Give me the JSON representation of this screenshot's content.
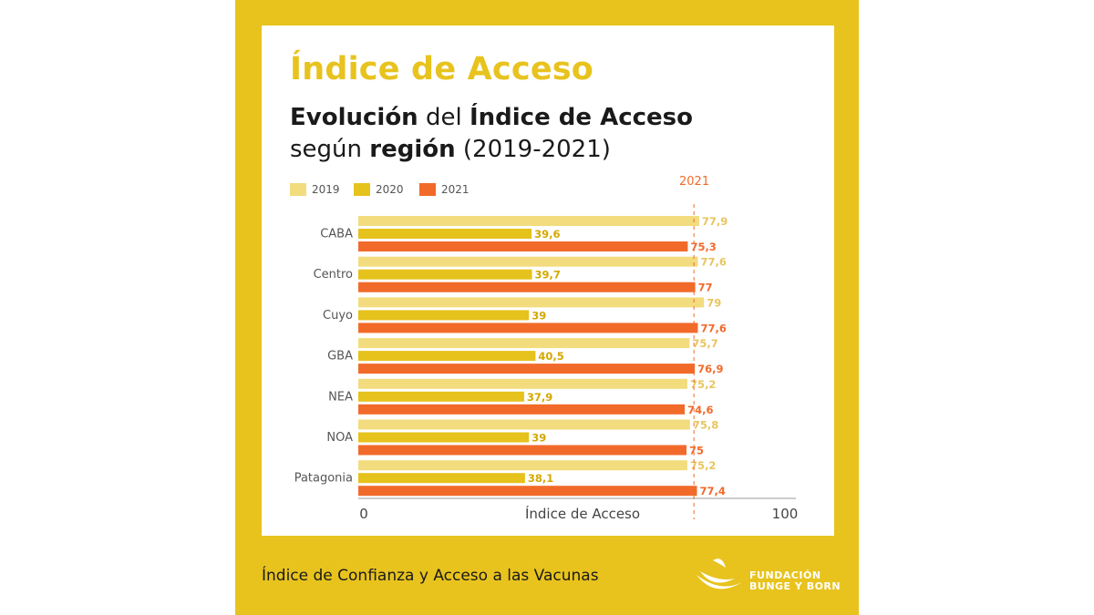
{
  "title": "Índice de Acceso",
  "subtitle": {
    "line1_bold_a": "Evolución",
    "line1_mid": " del ",
    "line1_bold_b": "Índice de Acceso",
    "line2_pre": "según ",
    "line2_bold": "región",
    "line2_post": " (2019-2021)"
  },
  "marker_label": "2021",
  "footer": "Índice de Confianza y Acceso a las Vacunas",
  "logo": {
    "line1": "FUNDACIÓN",
    "line2": "BUNGE Y BORN"
  },
  "colors": {
    "frame": "#E8C31E",
    "s2019": "#F2DC7E",
    "s2020": "#E6C21C",
    "s2021": "#F26A2A",
    "label2019": "#E8C560",
    "label2020": "#D4A800"
  },
  "chart_data": {
    "type": "bar",
    "orientation": "horizontal",
    "categories": [
      "CABA",
      "Centro",
      "Cuyo",
      "GBA",
      "NEA",
      "NOA",
      "Patagonia"
    ],
    "series": [
      {
        "name": "2019",
        "values": [
          77.9,
          77.6,
          79,
          75.7,
          75.2,
          75.8,
          75.2
        ],
        "labels": [
          "77,9",
          "77,6",
          "79",
          "75,7",
          "75,2",
          "75,8",
          "75,2"
        ]
      },
      {
        "name": "2020",
        "values": [
          39.6,
          39.7,
          39,
          40.5,
          37.9,
          39,
          38.1
        ],
        "labels": [
          "39,6",
          "39,7",
          "39",
          "40,5",
          "37,9",
          "39",
          "38,1"
        ]
      },
      {
        "name": "2021",
        "values": [
          75.3,
          77,
          77.6,
          76.9,
          74.6,
          75,
          77.4
        ],
        "labels": [
          "75,3",
          "77",
          "77,6",
          "76,9",
          "74,6",
          "75",
          "77,4"
        ]
      }
    ],
    "xlabel": "Índice de Acceso",
    "xlim": [
      0,
      100
    ],
    "xticks": [
      "0",
      "100"
    ],
    "reference_line": {
      "series": "2021",
      "label": "2021"
    },
    "legend": "top-left",
    "grid": false
  }
}
